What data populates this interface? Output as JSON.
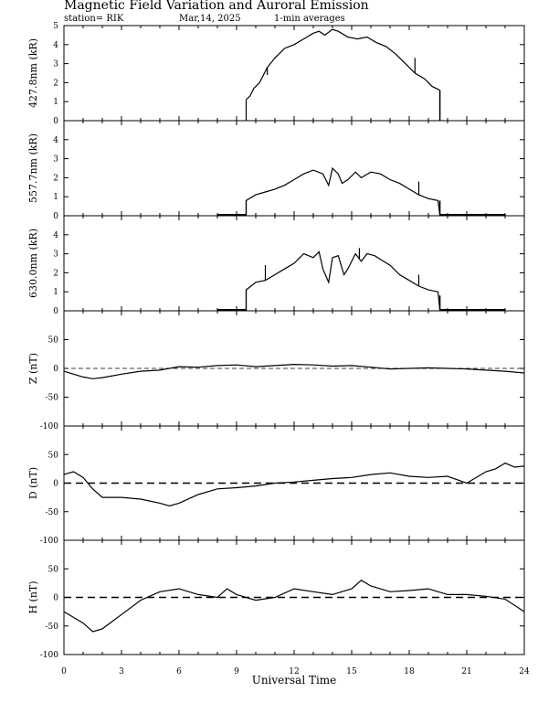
{
  "header": {
    "title": "Magnetic Field Variation and Auroral Emission",
    "station": "station= RIK",
    "date": "Mar,14, 2025",
    "averages": "1-min averages"
  },
  "x_axis": {
    "label": "Universal Time",
    "ticks": [
      "0",
      "3",
      "6",
      "9",
      "12",
      "15",
      "18",
      "21",
      "24"
    ]
  },
  "colors": {
    "line": "#000000",
    "background": "#ffffff"
  },
  "chart_data": [
    {
      "type": "line",
      "ylabel": "427.8nm (kR)",
      "xlim": [
        0,
        24
      ],
      "ylim": [
        0,
        5
      ],
      "yticks": [
        "0",
        "1",
        "2",
        "3",
        "4",
        "5"
      ],
      "series": [
        {
          "x": [
            9.5,
            9.7,
            9.9,
            10.2,
            10.6,
            11.0,
            11.5,
            12.0,
            12.5,
            13.0,
            13.3,
            13.6,
            14.0,
            14.3,
            14.8,
            15.3,
            15.8,
            16.3,
            16.8,
            17.3,
            17.8,
            18.3,
            18.8,
            19.2,
            19.6
          ],
          "y": [
            1.1,
            1.3,
            1.7,
            2.0,
            2.8,
            3.3,
            3.8,
            4.0,
            4.3,
            4.6,
            4.7,
            4.5,
            4.8,
            4.7,
            4.4,
            4.3,
            4.4,
            4.1,
            3.9,
            3.5,
            3.0,
            2.5,
            2.2,
            1.8,
            1.6
          ]
        }
      ],
      "spikes": [
        {
          "x": 10.6,
          "y": 2.4
        },
        {
          "x": 18.3,
          "y": 3.3
        }
      ]
    },
    {
      "type": "line",
      "ylabel": "557.7nm (kR)",
      "xlim": [
        0,
        24
      ],
      "ylim": [
        0,
        5
      ],
      "yticks": [
        "0",
        "1",
        "2",
        "3",
        "4"
      ],
      "series": [
        {
          "x": [
            8.0,
            9.5,
            9.5,
            10.0,
            10.5,
            11.0,
            11.5,
            12.0,
            12.5,
            13.0,
            13.5,
            13.8,
            14.0,
            14.3,
            14.5,
            14.8,
            15.2,
            15.5,
            16.0,
            16.5,
            17.0,
            17.5,
            18.0,
            18.5,
            19.0,
            19.5,
            19.6,
            23.0
          ],
          "y": [
            0.05,
            0.05,
            0.8,
            1.1,
            1.25,
            1.4,
            1.6,
            1.9,
            2.2,
            2.4,
            2.2,
            1.6,
            2.5,
            2.2,
            1.7,
            1.9,
            2.3,
            2.0,
            2.3,
            2.2,
            1.9,
            1.7,
            1.4,
            1.1,
            0.9,
            0.8,
            0.05,
            0.05
          ]
        }
      ],
      "spikes": [
        {
          "x": 18.5,
          "y": 1.8
        }
      ]
    },
    {
      "type": "line",
      "ylabel": "630.0nm (kR)",
      "xlim": [
        0,
        24
      ],
      "ylim": [
        0,
        5
      ],
      "yticks": [
        "0",
        "1",
        "2",
        "3",
        "4"
      ],
      "series": [
        {
          "x": [
            8.0,
            9.5,
            9.5,
            10.0,
            10.5,
            11.0,
            11.5,
            12.0,
            12.5,
            13.0,
            13.3,
            13.5,
            13.8,
            14.0,
            14.3,
            14.6,
            14.8,
            15.2,
            15.5,
            15.8,
            16.2,
            16.5,
            17.0,
            17.5,
            18.0,
            18.5,
            19.0,
            19.5,
            19.6,
            23.0
          ],
          "y": [
            0.05,
            0.05,
            1.1,
            1.5,
            1.6,
            1.9,
            2.2,
            2.5,
            3.0,
            2.8,
            3.1,
            2.2,
            1.5,
            2.8,
            2.9,
            1.9,
            2.2,
            3.0,
            2.6,
            3.0,
            2.9,
            2.7,
            2.4,
            1.9,
            1.6,
            1.3,
            1.1,
            1.0,
            0.05,
            0.05
          ]
        }
      ],
      "spikes": [
        {
          "x": 10.5,
          "y": 2.4
        },
        {
          "x": 11.3,
          "y": 2.1
        },
        {
          "x": 15.4,
          "y": 3.3
        },
        {
          "x": 18.5,
          "y": 1.9
        }
      ]
    },
    {
      "type": "line",
      "ylabel": "Z (nT)",
      "xlim": [
        0,
        24
      ],
      "ylim": [
        -100,
        100
      ],
      "yticks": [
        "-100",
        "-50",
        "0",
        "50"
      ],
      "zero_line": "dashed-thin",
      "series": [
        {
          "x": [
            0,
            0.5,
            1.0,
            1.5,
            2.0,
            3.0,
            4.0,
            5.0,
            6.0,
            7.0,
            8.0,
            9.0,
            10.0,
            11.0,
            12.0,
            13.0,
            14.0,
            15.0,
            16.0,
            17.0,
            18.0,
            19.0,
            20.0,
            21.0,
            22.0,
            23.0,
            24.0
          ],
          "y": [
            -5,
            -10,
            -15,
            -18,
            -16,
            -10,
            -5,
            -3,
            3,
            2,
            5,
            6,
            3,
            5,
            7,
            6,
            4,
            5,
            2,
            -1,
            0,
            1,
            0,
            -1,
            -3,
            -5,
            -8
          ]
        }
      ]
    },
    {
      "type": "line",
      "ylabel": "D (nT)",
      "xlim": [
        0,
        24
      ],
      "ylim": [
        -100,
        100
      ],
      "yticks": [
        "-100",
        "-50",
        "0",
        "50"
      ],
      "zero_line": "dashed-thick",
      "series": [
        {
          "x": [
            0,
            0.5,
            1.0,
            1.5,
            2.0,
            3.0,
            4.0,
            5.0,
            5.5,
            6.0,
            7.0,
            8.0,
            9.0,
            10.0,
            11.0,
            12.0,
            13.0,
            14.0,
            15.0,
            16.0,
            17.0,
            18.0,
            19.0,
            20.0,
            21.0,
            22.0,
            22.5,
            23.0,
            23.5,
            24.0
          ],
          "y": [
            15,
            20,
            10,
            -10,
            -25,
            -25,
            -28,
            -35,
            -40,
            -35,
            -20,
            -10,
            -8,
            -5,
            0,
            2,
            5,
            8,
            10,
            15,
            18,
            12,
            10,
            12,
            0,
            20,
            25,
            35,
            28,
            30
          ]
        }
      ]
    },
    {
      "type": "line",
      "ylabel": "H (nT)",
      "xlim": [
        0,
        24
      ],
      "ylim": [
        -100,
        100
      ],
      "yticks": [
        "-100",
        "-50",
        "0",
        "50"
      ],
      "zero_line": "dashed-thick",
      "series": [
        {
          "x": [
            0,
            0.5,
            1.0,
            1.5,
            2.0,
            3.0,
            4.0,
            5.0,
            6.0,
            7.0,
            8.0,
            8.5,
            9.0,
            10.0,
            11.0,
            12.0,
            13.0,
            14.0,
            15.0,
            15.5,
            16.0,
            17.0,
            18.0,
            19.0,
            20.0,
            21.0,
            22.0,
            23.0,
            24.0
          ],
          "y": [
            -25,
            -35,
            -45,
            -60,
            -55,
            -30,
            -5,
            10,
            15,
            5,
            0,
            15,
            5,
            -5,
            0,
            15,
            10,
            5,
            15,
            30,
            20,
            10,
            12,
            15,
            5,
            5,
            2,
            -3,
            -25
          ]
        }
      ]
    }
  ]
}
